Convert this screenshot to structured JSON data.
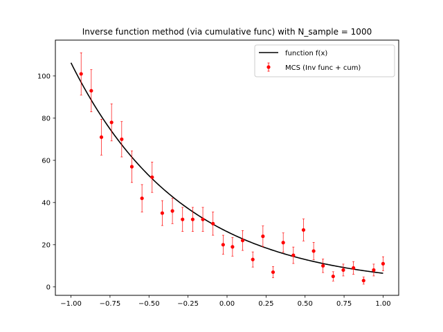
{
  "chart_data": {
    "type": "scatter",
    "title": "Inverse function method (via cumulative func)  with N_sample = 1000",
    "xlabel": "",
    "ylabel": "",
    "xlim": [
      -1.1,
      1.1
    ],
    "ylim": [
      -4,
      117
    ],
    "xticks": [
      -1.0,
      -0.75,
      -0.5,
      -0.25,
      0.0,
      0.25,
      0.5,
      0.75,
      1.0
    ],
    "xtick_labels": [
      "−1.00",
      "−0.75",
      "−0.50",
      "−0.25",
      "0.00",
      "0.25",
      "0.50",
      "0.75",
      "1.00"
    ],
    "yticks": [
      0,
      20,
      40,
      60,
      80,
      100
    ],
    "ytick_labels": [
      "0",
      "20",
      "40",
      "60",
      "80",
      "100"
    ],
    "grid": false,
    "legend_position": "top-right",
    "series": [
      {
        "name": "function f(x)",
        "kind": "line",
        "color": "#000000",
        "curve": {
          "form": "exponential",
          "a": 26.2,
          "b": -1.4,
          "x_start": -1.0,
          "x_end": 1.0
        }
      },
      {
        "name": "MCS (Inv func + cum)",
        "kind": "errorbar",
        "color": "#ff0000",
        "points": [
          {
            "x": -0.935,
            "y": 101,
            "err": 10
          },
          {
            "x": -0.87,
            "y": 93,
            "err": 10
          },
          {
            "x": -0.805,
            "y": 71,
            "err": 8.5
          },
          {
            "x": -0.74,
            "y": 78,
            "err": 8.8
          },
          {
            "x": -0.675,
            "y": 70,
            "err": 8.4
          },
          {
            "x": -0.61,
            "y": 57,
            "err": 7.5
          },
          {
            "x": -0.545,
            "y": 42,
            "err": 6.5
          },
          {
            "x": -0.48,
            "y": 52,
            "err": 7.2
          },
          {
            "x": -0.415,
            "y": 35,
            "err": 5.9
          },
          {
            "x": -0.35,
            "y": 36,
            "err": 6.0
          },
          {
            "x": -0.285,
            "y": 32,
            "err": 5.7
          },
          {
            "x": -0.22,
            "y": 32,
            "err": 5.7
          },
          {
            "x": -0.155,
            "y": 32,
            "err": 5.7
          },
          {
            "x": -0.09,
            "y": 30,
            "err": 5.5
          },
          {
            "x": -0.025,
            "y": 20,
            "err": 4.5
          },
          {
            "x": 0.035,
            "y": 19,
            "err": 4.4
          },
          {
            "x": 0.1,
            "y": 22,
            "err": 4.7
          },
          {
            "x": 0.165,
            "y": 13,
            "err": 3.6
          },
          {
            "x": 0.23,
            "y": 24,
            "err": 4.9
          },
          {
            "x": 0.295,
            "y": 7,
            "err": 2.6
          },
          {
            "x": 0.36,
            "y": 21,
            "err": 4.6
          },
          {
            "x": 0.425,
            "y": 15,
            "err": 3.9
          },
          {
            "x": 0.49,
            "y": 27,
            "err": 5.2
          },
          {
            "x": 0.555,
            "y": 17,
            "err": 4.1
          },
          {
            "x": 0.615,
            "y": 10,
            "err": 3.2
          },
          {
            "x": 0.68,
            "y": 5,
            "err": 2.2
          },
          {
            "x": 0.745,
            "y": 8,
            "err": 2.8
          },
          {
            "x": 0.81,
            "y": 9,
            "err": 3.0
          },
          {
            "x": 0.875,
            "y": 3,
            "err": 1.7
          },
          {
            "x": 0.94,
            "y": 8,
            "err": 2.8
          },
          {
            "x": 1.0,
            "y": 11,
            "err": 3.3
          }
        ]
      }
    ]
  }
}
